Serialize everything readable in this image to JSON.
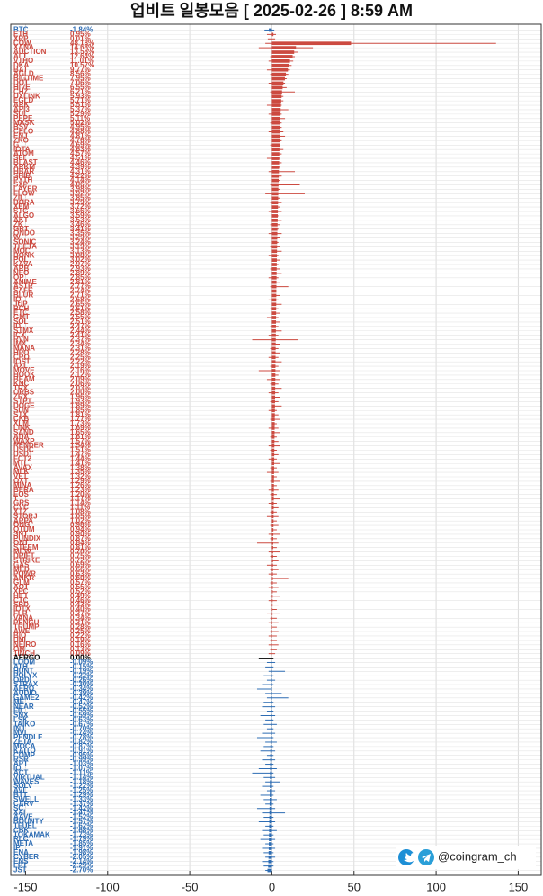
{
  "chart_data": {
    "type": "bar",
    "orientation": "horizontal",
    "title": "업비트 일봉모음 [ 2025-02-26 ]  8:59 AM",
    "watermark": "@coingram_ch",
    "grid": true,
    "colors": {
      "up": "#cc4a40",
      "down": "#2d6cb3",
      "flat": "#000000"
    },
    "xlim": [
      -159,
      164
    ],
    "xticks": [
      -150,
      -100,
      -50,
      0,
      50,
      100,
      150
    ],
    "categories": [
      "BTC",
      "ETH",
      "XRP",
      "COW",
      "XANA",
      "AUCTION",
      "ALT",
      "VTHO",
      "DKA",
      "BAT",
      "AGLD",
      "BIGTIME",
      "DOT",
      "HIVE",
      "CHZ",
      "UXLINK",
      "EGLD",
      "ARK",
      "API3",
      "SUI",
      "PEPE",
      "MASK",
      "BSV",
      "CELO",
      "ENJ",
      "ZRO",
      "G",
      "IOTA",
      "ATOM",
      "SEI",
      "BLAST",
      "ARKM",
      "HBAR",
      "SHIB",
      "PYTH",
      "SXP",
      "LAYER",
      "FLOW",
      "ZIL",
      "BORA",
      "XEM",
      "STG",
      "ALGO",
      "AKT",
      "ZK",
      "GRT",
      "ONDO",
      "W",
      "SONIC",
      "THETA",
      "MOC",
      "BONK",
      "POL",
      "KAVA",
      "ARB",
      "NEO",
      "OP",
      "ANIME",
      "ASTR",
      "SAFE",
      "BLUR",
      "IQ",
      "JUP",
      "BCH",
      "ETC",
      "GMT",
      "SOL",
      "ID",
      "STMX",
      "ICX",
      "RVN",
      "IMX",
      "MANA",
      "HPO",
      "CRO",
      "IOST",
      "AXL",
      "MOVE",
      "HOOK",
      "BEAM",
      "KNC",
      "TRX",
      "ORBS",
      "ZRX",
      "STPT",
      "DOGE",
      "SUN",
      "STX",
      "CKB",
      "XLM",
      "LINK",
      "SAND",
      "ADA",
      "WAXP",
      "RENDER",
      "USDC",
      "USDT",
      "FCT2",
      "MTL",
      "AVAX",
      "MLK",
      "VET",
      "OXT",
      "MINA",
      "BERA",
      "EOS",
      "T",
      "GRS",
      "CVC",
      "XTZ",
      "STORJ",
      "ARPA",
      "ONG",
      "QTUM",
      "SNT",
      "PUNDIX",
      "ONT",
      "STEEM",
      "MEW",
      "DRIFT",
      "STRIKE",
      "GAS",
      "MED",
      "POWR",
      "ANKR",
      "GLM",
      "AQT",
      "XEC",
      "HIFI",
      "CTC",
      "SBD",
      "IOTX",
      "FLR",
      "VANA",
      "PENGU",
      "TRUMP",
      "AWE",
      "BIO",
      "UNI",
      "NEIRO",
      "OM",
      "1INCH",
      "AERGO",
      "LOOM",
      "ATH",
      "HUNT",
      "POLYX",
      "ORDI",
      "STRAX",
      "AERO",
      "AUDIO",
      "GAME2",
      "ME",
      "NEAR",
      "FIL",
      "SNX",
      "LSK",
      "TAIKO",
      "INJ",
      "MVL",
      "PENDLE",
      "ZETA",
      "MOCA",
      "KAITO",
      "COMP",
      "RSR",
      "APT",
      "IO",
      "ACT",
      "VIRTUAL",
      "WAVES",
      "SOLV",
      "AVL",
      "BTT",
      "SWELL",
      "CARV",
      "SC",
      "XAI",
      "AAVE",
      "BOUNTY",
      "TFUEL",
      "CBK",
      "TOKAMAK",
      "RLC",
      "META",
      "IP",
      "ENA",
      "CYBER",
      "ENS",
      "LPT",
      "JST"
    ],
    "values": [
      -1.84,
      0.95,
      0.01,
      48.18,
      14.68,
      13.58,
      12.64,
      11.01,
      10.57,
      9.77,
      8.56,
      7.95,
      7.06,
      6.55,
      6.21,
      5.93,
      5.71,
      5.51,
      5.37,
      5.29,
      5.11,
      5.02,
      4.95,
      4.88,
      4.81,
      4.76,
      4.69,
      4.63,
      4.57,
      4.51,
      4.46,
      4.39,
      4.31,
      4.22,
      4.14,
      4.06,
      3.98,
      3.92,
      3.85,
      3.79,
      3.72,
      3.66,
      3.59,
      3.53,
      3.46,
      3.41,
      3.35,
      3.29,
      3.24,
      3.19,
      3.13,
      3.08,
      3.02,
      2.97,
      2.93,
      2.89,
      2.85,
      2.81,
      2.77,
      2.74,
      2.71,
      2.68,
      2.65,
      2.61,
      2.58,
      2.55,
      2.51,
      2.47,
      2.44,
      2.41,
      2.37,
      2.34,
      2.31,
      2.28,
      2.25,
      2.22,
      2.19,
      2.16,
      2.12,
      2.09,
      2.06,
      2.03,
      2.0,
      1.96,
      1.93,
      1.89,
      1.85,
      1.81,
      1.77,
      1.73,
      1.69,
      1.65,
      1.61,
      1.57,
      1.54,
      1.51,
      1.47,
      1.44,
      1.41,
      1.38,
      1.35,
      1.32,
      1.29,
      1.26,
      1.23,
      1.2,
      1.17,
      1.14,
      1.11,
      1.08,
      1.05,
      1.02,
      0.98,
      0.94,
      0.9,
      0.87,
      0.84,
      0.81,
      0.78,
      0.75,
      0.72,
      0.69,
      0.66,
      0.63,
      0.6,
      0.57,
      0.55,
      0.52,
      0.49,
      0.46,
      0.43,
      0.4,
      0.37,
      0.34,
      0.31,
      0.28,
      0.25,
      0.22,
      0.19,
      0.16,
      0.13,
      0.09,
      0.0,
      -0.09,
      -0.15,
      -0.19,
      -0.22,
      -0.26,
      -0.3,
      -0.34,
      -0.39,
      -0.42,
      -0.47,
      -0.52,
      -0.55,
      -0.59,
      -0.63,
      -0.67,
      -0.7,
      -0.74,
      -0.78,
      -0.82,
      -0.87,
      -0.91,
      -0.95,
      -0.99,
      -1.03,
      -1.07,
      -1.11,
      -1.14,
      -1.18,
      -1.22,
      -1.25,
      -1.29,
      -1.33,
      -1.37,
      -1.42,
      -1.47,
      -1.52,
      -1.57,
      -1.62,
      -1.68,
      -1.73,
      -1.79,
      -1.85,
      -1.91,
      -1.98,
      -2.05,
      -2.14,
      -2.29,
      -2.7
    ],
    "value_labels": [
      "-1.84%",
      "0.95%",
      "0.01%",
      "48.18%",
      "14.68%",
      "13.58%",
      "12.64%",
      "11.01%",
      "10.57%",
      "9.77%",
      "8.56%",
      "7.95%",
      "7.06%",
      "6.55%",
      "6.21%",
      "5.93%",
      "5.71%",
      "5.51%",
      "5.37%",
      "5.29%",
      "5.11%",
      "5.02%",
      "4.95%",
      "4.88%",
      "4.81%",
      "4.76%",
      "4.69%",
      "4.63%",
      "4.57%",
      "4.51%",
      "4.46%",
      "4.39%",
      "4.31%",
      "4.22%",
      "4.14%",
      "4.06%",
      "3.98%",
      "3.92%",
      "3.85%",
      "3.79%",
      "3.72%",
      "3.66%",
      "3.59%",
      "3.53%",
      "3.46%",
      "3.41%",
      "3.35%",
      "3.29%",
      "3.24%",
      "3.19%",
      "3.13%",
      "3.08%",
      "3.02%",
      "2.97%",
      "2.93%",
      "2.89%",
      "2.85%",
      "2.81%",
      "2.77%",
      "2.74%",
      "2.71%",
      "2.68%",
      "2.65%",
      "2.61%",
      "2.58%",
      "2.55%",
      "2.51%",
      "2.47%",
      "2.44%",
      "2.41%",
      "2.37%",
      "2.34%",
      "2.31%",
      "2.28%",
      "2.25%",
      "2.22%",
      "2.19%",
      "2.16%",
      "2.12%",
      "2.09%",
      "2.06%",
      "2.03%",
      "2.00%",
      "1.96%",
      "1.93%",
      "1.89%",
      "1.85%",
      "1.81%",
      "1.77%",
      "1.73%",
      "1.69%",
      "1.65%",
      "1.61%",
      "1.57%",
      "1.54%",
      "1.51%",
      "1.47%",
      "1.44%",
      "1.41%",
      "1.38%",
      "1.35%",
      "1.32%",
      "1.29%",
      "1.26%",
      "1.23%",
      "1.20%",
      "1.17%",
      "1.14%",
      "1.11%",
      "1.08%",
      "1.05%",
      "1.02%",
      "0.98%",
      "0.94%",
      "0.90%",
      "0.87%",
      "0.84%",
      "0.81%",
      "0.78%",
      "0.75%",
      "0.72%",
      "0.69%",
      "0.66%",
      "0.63%",
      "0.60%",
      "0.57%",
      "0.55%",
      "0.52%",
      "0.49%",
      "0.46%",
      "0.43%",
      "0.40%",
      "0.37%",
      "0.34%",
      "0.31%",
      "0.28%",
      "0.25%",
      "0.22%",
      "0.19%",
      "0.16%",
      "0.13%",
      "0.09%",
      "0.00%",
      "-0.09%",
      "-0.15%",
      "-0.19%",
      "-0.22%",
      "-0.26%",
      "-0.30%",
      "-0.34%",
      "-0.39%",
      "-0.42%",
      "-0.47%",
      "-0.52%",
      "-0.55%",
      "-0.59%",
      "-0.63%",
      "-0.67%",
      "-0.70%",
      "-0.74%",
      "-0.78%",
      "-0.82%",
      "-0.87%",
      "-0.91%",
      "-0.95%",
      "-0.99%",
      "-1.03%",
      "-1.07%",
      "-1.11%",
      "-1.14%",
      "-1.18%",
      "-1.22%",
      "-1.25%",
      "-1.29%",
      "-1.33%",
      "-1.37%",
      "-1.42%",
      "-1.47%",
      "-1.52%",
      "-1.57%",
      "-1.62%",
      "-1.68%",
      "-1.73%",
      "-1.79%",
      "-1.85%",
      "-1.91%",
      "-1.98%",
      "-2.05%",
      "-2.14%",
      "-2.29%",
      "-2.70%"
    ],
    "low": [
      -4.5,
      -3,
      -2.5,
      -4,
      -8,
      2,
      -1,
      -2,
      1,
      -3,
      -1,
      0,
      -2,
      1,
      -1,
      0,
      2,
      -3,
      1,
      -2,
      0,
      -1,
      1,
      -2,
      0,
      1,
      -1,
      0,
      2,
      -3,
      0,
      1,
      -2,
      0,
      1,
      -1,
      0,
      -4,
      1,
      -1,
      0,
      -2,
      1,
      0,
      -1,
      1,
      -2,
      0,
      1,
      -1,
      0,
      -2,
      1,
      0,
      -1,
      1,
      -2,
      0,
      -1,
      1,
      0,
      -2,
      0,
      -1,
      1,
      -3,
      0,
      -1,
      0,
      -2,
      -12,
      0,
      -1,
      1,
      -2,
      0,
      -1,
      -8,
      0,
      -3,
      -1,
      0,
      -2,
      0,
      -1,
      0,
      -2,
      0,
      -1,
      0,
      -2,
      0,
      -1,
      0,
      -2,
      -1,
      0,
      -2,
      0,
      -1,
      -3,
      0,
      -1,
      0,
      -2,
      -1,
      0,
      -2,
      0,
      -1,
      -3,
      0,
      -1,
      0,
      -2,
      -1,
      -9,
      0,
      -2,
      -1,
      0,
      -3,
      -1,
      -2,
      0,
      -1,
      -2,
      0,
      -1,
      -2,
      -1,
      0,
      -3,
      -1,
      -2,
      0,
      -1,
      -2,
      -1,
      -2,
      -1,
      -2,
      -8,
      -3,
      -4,
      -2,
      -5,
      -3,
      -6,
      -9,
      -4,
      -3,
      -5,
      -6,
      -3,
      -7,
      -4,
      -5,
      -3,
      -6,
      -9,
      -4,
      -5,
      -7,
      -3,
      -6,
      -4,
      -8,
      -12,
      -5,
      -4,
      -6,
      -3,
      -7,
      -5,
      -4,
      -9,
      -6,
      -5,
      -8,
      -4,
      -6,
      -5,
      -7,
      -4,
      -6,
      -5,
      -4,
      -6,
      -5,
      -4
    ],
    "high": [
      1.5,
      2.5,
      2,
      136.5,
      25,
      16,
      14,
      13,
      12,
      11,
      10,
      9,
      8,
      9,
      14,
      7,
      7,
      6,
      10,
      6,
      8,
      6,
      6,
      7,
      8,
      6,
      5,
      7,
      6,
      5,
      6,
      5,
      14,
      6,
      5,
      17,
      5,
      20,
      5,
      6,
      5,
      6,
      4,
      6,
      5,
      4,
      6,
      5,
      4,
      5,
      6,
      4,
      5,
      4,
      5,
      6,
      4,
      5,
      10,
      4,
      5,
      4,
      6,
      4,
      5,
      4,
      5,
      4,
      6,
      4,
      16,
      5,
      4,
      5,
      4,
      6,
      4,
      5,
      4,
      5,
      4,
      6,
      4,
      5,
      4,
      6,
      3,
      4,
      5,
      3,
      4,
      5,
      3,
      4,
      5,
      3,
      4,
      3,
      5,
      3,
      4,
      3,
      5,
      3,
      4,
      3,
      5,
      3,
      4,
      3,
      4,
      3,
      4,
      3,
      5,
      3,
      4,
      3,
      5,
      3,
      4,
      3,
      4,
      3,
      10,
      3,
      4,
      3,
      5,
      3,
      4,
      3,
      5,
      3,
      4,
      3,
      4,
      3,
      3,
      4,
      3,
      2,
      1,
      2,
      1,
      8,
      1,
      2,
      1,
      0,
      6,
      10,
      1,
      2,
      1,
      2,
      1,
      3,
      1,
      2,
      1,
      3,
      1,
      2,
      1,
      2,
      1,
      3,
      1,
      2,
      5,
      1,
      2,
      1,
      3,
      1,
      2,
      8,
      1,
      2,
      1,
      3,
      1,
      2,
      1,
      2,
      1,
      2,
      1,
      1,
      0
    ]
  }
}
